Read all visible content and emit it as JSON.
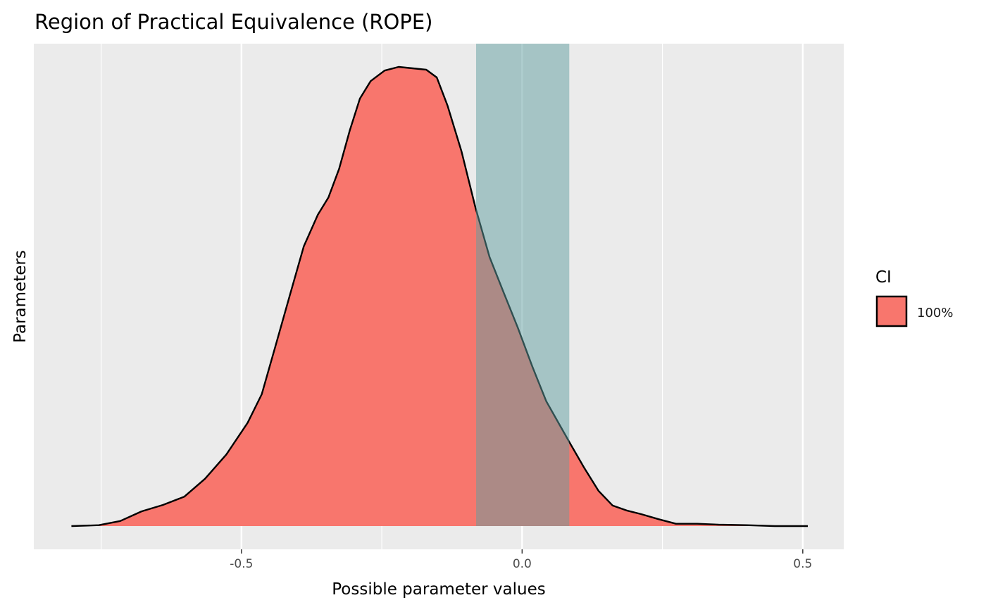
{
  "chart_data": {
    "type": "area",
    "title": "Region of Practical Equivalence (ROPE)",
    "xlabel": "Possible parameter values",
    "ylabel": "Parameters",
    "xlim": [
      -0.87,
      0.573
    ],
    "x_ticks": [
      -0.5,
      0.0,
      0.5
    ],
    "x_tick_labels": [
      "-0.5",
      "0.0",
      "0.5"
    ],
    "x_minor_gridlines": [
      -0.75,
      -0.25,
      0.25
    ],
    "grid": true,
    "rope": {
      "low": -0.082,
      "high": 0.084,
      "color": "#5F9EA0",
      "opacity": 0.5
    },
    "legend": {
      "title": "CI",
      "entries": [
        {
          "label": "100%",
          "color": "#F8766D"
        }
      ],
      "placement": "right"
    },
    "density_color": "#F8766D",
    "panel_background": "#EBEBEB",
    "series": [
      {
        "x": [
          -0.803,
          -0.754,
          -0.716,
          -0.678,
          -0.64,
          -0.602,
          -0.565,
          -0.527,
          -0.489,
          -0.464,
          -0.439,
          -0.414,
          -0.389,
          -0.364,
          -0.345,
          -0.326,
          -0.307,
          -0.289,
          -0.27,
          -0.245,
          -0.22,
          -0.195,
          -0.171,
          -0.152,
          -0.133,
          -0.108,
          -0.083,
          -0.058,
          -0.033,
          -0.008,
          0.018,
          0.043,
          0.068,
          0.086,
          0.111,
          0.136,
          0.161,
          0.186,
          0.212,
          0.243,
          0.274,
          0.312,
          0.35,
          0.4,
          0.45,
          0.509
        ],
        "y": [
          0.0,
          0.002,
          0.011,
          0.032,
          0.046,
          0.064,
          0.103,
          0.156,
          0.225,
          0.287,
          0.394,
          0.502,
          0.609,
          0.678,
          0.716,
          0.778,
          0.862,
          0.931,
          0.969,
          0.992,
          1.0,
          0.997,
          0.994,
          0.977,
          0.916,
          0.816,
          0.693,
          0.586,
          0.509,
          0.433,
          0.348,
          0.272,
          0.218,
          0.179,
          0.126,
          0.077,
          0.045,
          0.034,
          0.026,
          0.015,
          0.005,
          0.005,
          0.003,
          0.002,
          0.0,
          0.0
        ]
      }
    ]
  }
}
